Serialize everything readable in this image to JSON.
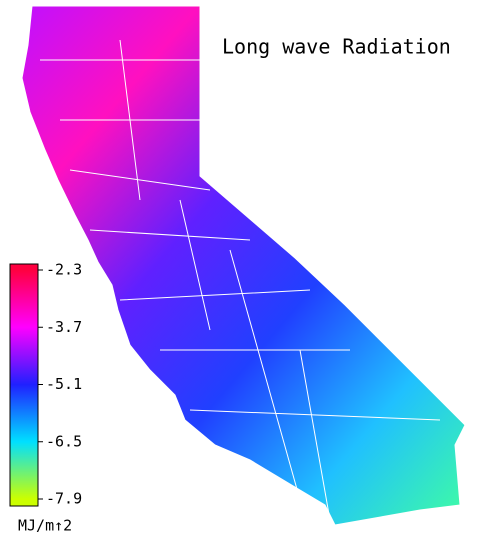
{
  "title": "Long wave Radiation",
  "colorbar": {
    "label": "MJ/m↑2",
    "lim": [
      -7.9,
      -2.3
    ],
    "ticks": [
      -2.3,
      -3.7,
      -5.1,
      -6.5,
      -7.9
    ],
    "colors": [
      "#ff0040",
      "#ff00ff",
      "#2020ff",
      "#00e0ff",
      "#ccff00"
    ]
  }
}
